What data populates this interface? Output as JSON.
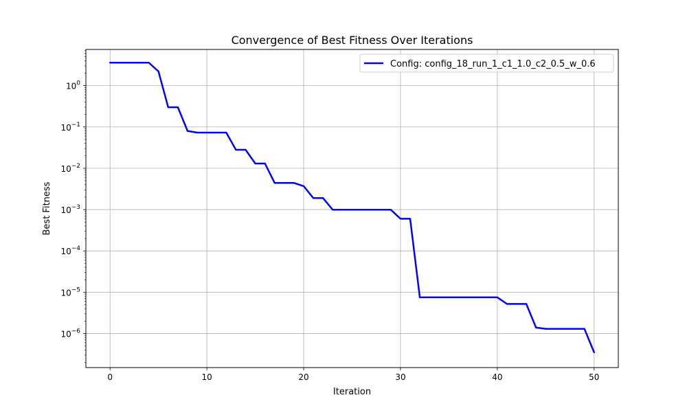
{
  "chart_data": {
    "type": "line",
    "title": "Convergence of Best Fitness Over Iterations",
    "xlabel": "Iteration",
    "ylabel": "Best Fitness",
    "yscale": "log",
    "xlim": [
      -2.5,
      52.5
    ],
    "ylim": [
      1.5e-07,
      7.5
    ],
    "grid": true,
    "legend_position": "top-right",
    "x_ticks": [
      0,
      10,
      20,
      30,
      40,
      50
    ],
    "x_tick_labels": [
      "0",
      "10",
      "20",
      "30",
      "40",
      "50"
    ],
    "y_ticks": [
      1e-06,
      1e-05,
      0.0001,
      0.001,
      0.01,
      0.1,
      1
    ],
    "y_tick_labels": [
      {
        "base": "10",
        "exp": "−6"
      },
      {
        "base": "10",
        "exp": "−5"
      },
      {
        "base": "10",
        "exp": "−4"
      },
      {
        "base": "10",
        "exp": "−3"
      },
      {
        "base": "10",
        "exp": "−2"
      },
      {
        "base": "10",
        "exp": "−1"
      },
      {
        "base": "10",
        "exp": "0"
      }
    ],
    "series": [
      {
        "name": "Config: config_18_run_1_c1_1.0_c2_0.5_w_0.6",
        "color": "#0000ff",
        "x": [
          0,
          1,
          2,
          3,
          4,
          5,
          6,
          7,
          8,
          9,
          10,
          11,
          12,
          13,
          14,
          15,
          16,
          17,
          18,
          19,
          20,
          21,
          22,
          23,
          24,
          25,
          26,
          27,
          28,
          29,
          30,
          31,
          32,
          33,
          34,
          35,
          36,
          37,
          38,
          39,
          40,
          41,
          42,
          43,
          44,
          45,
          46,
          47,
          48,
          49,
          50
        ],
        "y": [
          3.6,
          3.6,
          3.6,
          3.6,
          3.6,
          2.2,
          0.3,
          0.3,
          0.08,
          0.073,
          0.073,
          0.073,
          0.073,
          0.028,
          0.028,
          0.013,
          0.013,
          0.0044,
          0.0044,
          0.0044,
          0.0037,
          0.0019,
          0.0019,
          0.00099,
          0.00099,
          0.00099,
          0.00099,
          0.00099,
          0.00099,
          0.00099,
          0.0006,
          0.0006,
          7.5e-06,
          7.5e-06,
          7.5e-06,
          7.5e-06,
          7.5e-06,
          7.5e-06,
          7.5e-06,
          7.5e-06,
          7.5e-06,
          5.2e-06,
          5.2e-06,
          5.2e-06,
          1.4e-06,
          1.3e-06,
          1.3e-06,
          1.3e-06,
          1.3e-06,
          1.3e-06,
          3.5e-07
        ]
      }
    ]
  }
}
